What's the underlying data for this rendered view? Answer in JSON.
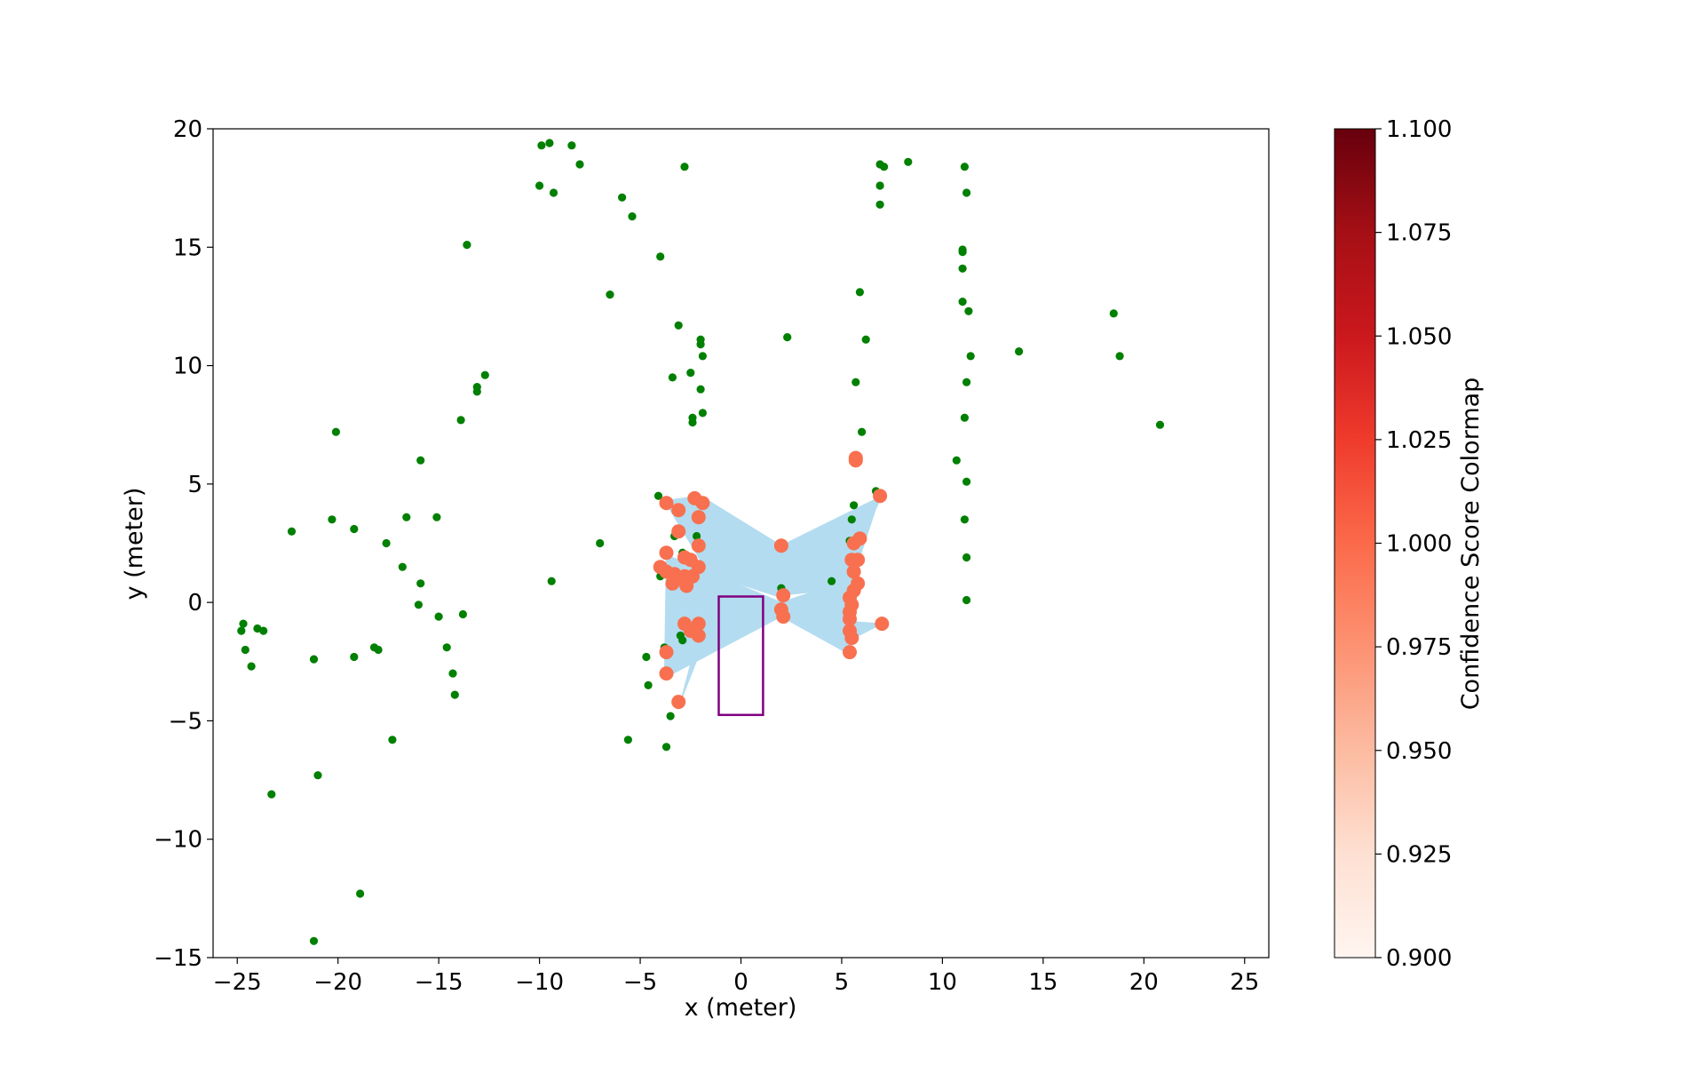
{
  "chart_data": {
    "type": "scatter",
    "title": "",
    "xlabel": "x (meter)",
    "ylabel": "y (meter)",
    "xlim": [
      -26.2,
      26.2
    ],
    "ylim": [
      -15,
      20
    ],
    "xticks": [
      -25,
      -20,
      -15,
      -10,
      -5,
      0,
      5,
      10,
      15,
      20,
      25
    ],
    "xtick_labels": [
      "−25",
      "−20",
      "−15",
      "−10",
      "−5",
      "0",
      "5",
      "10",
      "15",
      "20",
      "25"
    ],
    "yticks": [
      -15,
      -10,
      -5,
      0,
      5,
      10,
      15,
      20
    ],
    "ytick_labels": [
      "−15",
      "−10",
      "−5",
      "0",
      "5",
      "10",
      "15",
      "20"
    ],
    "grid": false,
    "colors": {
      "points": "#008000",
      "matched_points": "#f8704f",
      "fill": "#b3dcf0",
      "vehicle_box": "#800080"
    },
    "green_points": [
      [
        -24.7,
        -0.9
      ],
      [
        -24.8,
        -1.2
      ],
      [
        -24.6,
        -2.0
      ],
      [
        -24.3,
        -2.7
      ],
      [
        -24.0,
        -1.1
      ],
      [
        -23.7,
        -1.2
      ],
      [
        -23.3,
        -8.1
      ],
      [
        -22.3,
        3.0
      ],
      [
        -21.2,
        -2.4
      ],
      [
        -21.2,
        -14.3
      ],
      [
        -21.0,
        -7.3
      ],
      [
        -20.3,
        3.5
      ],
      [
        -20.1,
        7.2
      ],
      [
        -19.2,
        3.1
      ],
      [
        -19.2,
        -2.3
      ],
      [
        -18.9,
        -12.3
      ],
      [
        -18.2,
        -1.9
      ],
      [
        -18.0,
        -2.0
      ],
      [
        -17.6,
        2.5
      ],
      [
        -17.3,
        -5.8
      ],
      [
        -16.8,
        1.5
      ],
      [
        -16.6,
        3.6
      ],
      [
        -16.0,
        -0.1
      ],
      [
        -15.9,
        0.8
      ],
      [
        -15.9,
        6.0
      ],
      [
        -15.1,
        3.6
      ],
      [
        -15.0,
        -0.6
      ],
      [
        -14.6,
        -1.9
      ],
      [
        -14.3,
        -3.0
      ],
      [
        -14.2,
        -3.9
      ],
      [
        -13.9,
        7.7
      ],
      [
        -13.8,
        -0.5
      ],
      [
        -13.6,
        15.1
      ],
      [
        -13.1,
        9.1
      ],
      [
        -13.1,
        8.9
      ],
      [
        -12.7,
        9.6
      ],
      [
        -10.0,
        17.6
      ],
      [
        -9.9,
        19.3
      ],
      [
        -9.5,
        19.4
      ],
      [
        -9.3,
        17.3
      ],
      [
        -9.4,
        0.9
      ],
      [
        -8.4,
        19.3
      ],
      [
        -8.0,
        18.5
      ],
      [
        -7.0,
        2.5
      ],
      [
        -6.5,
        13.0
      ],
      [
        -5.9,
        17.1
      ],
      [
        -5.6,
        -5.8
      ],
      [
        -5.4,
        16.3
      ],
      [
        -4.7,
        -2.3
      ],
      [
        -4.6,
        -3.5
      ],
      [
        -4.1,
        4.5
      ],
      [
        -4.0,
        1.1
      ],
      [
        -4.0,
        14.6
      ],
      [
        -3.9,
        1.3
      ],
      [
        -3.8,
        -1.9
      ],
      [
        -3.7,
        -6.1
      ],
      [
        -3.5,
        -4.8
      ],
      [
        -3.4,
        9.5
      ],
      [
        -3.3,
        2.8
      ],
      [
        -3.1,
        11.7
      ],
      [
        -3.0,
        -1.4
      ],
      [
        -2.9,
        -1.6
      ],
      [
        -2.9,
        2.1
      ],
      [
        -2.8,
        18.4
      ],
      [
        -2.5,
        9.7
      ],
      [
        -2.4,
        7.8
      ],
      [
        -2.4,
        7.6
      ],
      [
        -2.3,
        4.4
      ],
      [
        -2.2,
        2.8
      ],
      [
        -2.0,
        11.1
      ],
      [
        -2.0,
        10.9
      ],
      [
        -2.0,
        9.0
      ],
      [
        -1.9,
        10.4
      ],
      [
        -1.9,
        8.0
      ],
      [
        2.0,
        0.6
      ],
      [
        2.3,
        11.2
      ],
      [
        4.5,
        0.9
      ],
      [
        5.4,
        2.6
      ],
      [
        5.5,
        3.5
      ],
      [
        5.6,
        4.1
      ],
      [
        5.7,
        9.3
      ],
      [
        5.9,
        13.1
      ],
      [
        6.0,
        7.2
      ],
      [
        6.2,
        11.1
      ],
      [
        6.7,
        4.7
      ],
      [
        6.9,
        16.8
      ],
      [
        6.9,
        17.6
      ],
      [
        6.9,
        18.5
      ],
      [
        7.1,
        18.4
      ],
      [
        8.3,
        18.6
      ],
      [
        10.7,
        6.0
      ],
      [
        11.0,
        14.9
      ],
      [
        11.0,
        14.8
      ],
      [
        11.0,
        14.1
      ],
      [
        11.0,
        12.7
      ],
      [
        11.1,
        18.4
      ],
      [
        11.1,
        3.5
      ],
      [
        11.1,
        7.8
      ],
      [
        11.2,
        17.3
      ],
      [
        11.2,
        5.1
      ],
      [
        11.2,
        1.9
      ],
      [
        11.2,
        0.1
      ],
      [
        11.2,
        9.3
      ],
      [
        11.3,
        12.3
      ],
      [
        11.4,
        10.4
      ],
      [
        13.8,
        10.6
      ],
      [
        18.5,
        12.2
      ],
      [
        18.8,
        10.4
      ],
      [
        20.8,
        7.5
      ]
    ],
    "matched_points": [
      [
        -3.7,
        4.2
      ],
      [
        -3.1,
        3.9
      ],
      [
        -3.7,
        2.1
      ],
      [
        -3.1,
        3.0
      ],
      [
        -2.3,
        4.4
      ],
      [
        -1.9,
        4.2
      ],
      [
        -2.1,
        3.6
      ],
      [
        -2.1,
        2.4
      ],
      [
        -2.8,
        1.9
      ],
      [
        -2.5,
        1.8
      ],
      [
        -2.1,
        1.5
      ],
      [
        -4.0,
        1.5
      ],
      [
        -3.7,
        1.3
      ],
      [
        -3.4,
        0.8
      ],
      [
        -3.3,
        1.2
      ],
      [
        -3.0,
        1.0
      ],
      [
        -2.8,
        1.1
      ],
      [
        -2.7,
        0.7
      ],
      [
        -2.4,
        1.1
      ],
      [
        -2.8,
        -0.9
      ],
      [
        -2.5,
        -1.2
      ],
      [
        -2.1,
        -0.9
      ],
      [
        -2.1,
        -1.4
      ],
      [
        -3.7,
        -2.1
      ],
      [
        -3.7,
        -3.0
      ],
      [
        -3.1,
        -4.2
      ],
      [
        2.0,
        2.4
      ],
      [
        2.1,
        0.3
      ],
      [
        2.0,
        -0.3
      ],
      [
        2.1,
        -0.6
      ],
      [
        5.5,
        1.8
      ],
      [
        5.8,
        1.8
      ],
      [
        5.6,
        1.3
      ],
      [
        5.8,
        0.8
      ],
      [
        5.6,
        0.5
      ],
      [
        5.4,
        0.2
      ],
      [
        5.5,
        -0.1
      ],
      [
        5.4,
        -0.4
      ],
      [
        5.4,
        -0.7
      ],
      [
        5.4,
        -1.2
      ],
      [
        5.5,
        -1.5
      ],
      [
        5.4,
        -2.1
      ],
      [
        5.6,
        2.5
      ],
      [
        5.9,
        2.7
      ],
      [
        5.7,
        6.0
      ],
      [
        5.7,
        6.1
      ],
      [
        6.9,
        4.5
      ],
      [
        7.0,
        -0.9
      ]
    ],
    "polygons": [
      [
        [
          -3.8,
          4.3
        ],
        [
          -2.0,
          4.5
        ],
        [
          2.0,
          2.4
        ],
        [
          7.0,
          4.5
        ],
        [
          5.4,
          1.6
        ],
        [
          2.0,
          0.2
        ],
        [
          -1.6,
          1.2
        ]
      ],
      [
        [
          -3.7,
          2.0
        ],
        [
          -2.2,
          1.5
        ],
        [
          2.0,
          0.0
        ],
        [
          5.5,
          1.0
        ],
        [
          5.4,
          -2.2
        ],
        [
          2.0,
          -0.6
        ],
        [
          -3.8,
          -3.2
        ]
      ],
      [
        [
          -3.0,
          -4.2
        ],
        [
          -2.0,
          -1.0
        ],
        [
          1.0,
          -0.5
        ],
        [
          2.0,
          -0.2
        ],
        [
          -1.2,
          -0.3
        ]
      ],
      [
        [
          2.0,
          0.3
        ],
        [
          5.5,
          2.6
        ],
        [
          6.9,
          4.5
        ],
        [
          5.4,
          0.6
        ]
      ],
      [
        [
          2.0,
          -0.4
        ],
        [
          5.4,
          -0.8
        ],
        [
          7.0,
          -0.9
        ],
        [
          5.4,
          -1.6
        ]
      ]
    ],
    "vehicle_box": {
      "x": [
        -1.1,
        1.1
      ],
      "y": [
        -4.75,
        0.25
      ]
    },
    "colorbar": {
      "label": "Confidence Score Colormap",
      "range": [
        0.9,
        1.1
      ],
      "colormap": "Reds",
      "ticks": [
        0.9,
        0.925,
        0.95,
        0.975,
        1.0,
        1.025,
        1.05,
        1.075,
        1.1
      ],
      "tick_labels": [
        "0.900",
        "0.925",
        "0.950",
        "0.975",
        "1.000",
        "1.025",
        "1.050",
        "1.075",
        "1.100"
      ]
    }
  }
}
